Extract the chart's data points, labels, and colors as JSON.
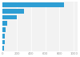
{
  "values": [
    863000,
    300000,
    200000,
    65000,
    45000,
    35000,
    25000,
    15000
  ],
  "bar_color": "#2e9ed4",
  "background_color": "#ffffff",
  "plot_bg_color": "#f2f2f2",
  "xlim": [
    0,
    1050000
  ],
  "figsize": [
    1.0,
    0.71
  ],
  "dpi": 100,
  "bar_height": 0.75,
  "grid_color": "#ffffff",
  "tick_color": "#999999",
  "tick_fontsize": 2.8
}
